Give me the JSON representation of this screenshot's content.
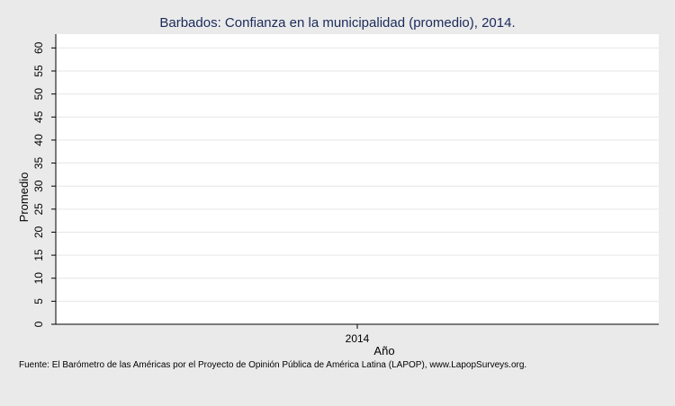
{
  "chart_data": {
    "type": "bar",
    "title": "Barbados: Confianza en la municipalidad (promedio), 2014.",
    "xlabel": "Año",
    "ylabel": "Promedio",
    "categories": [
      "2014"
    ],
    "values": [
      null
    ],
    "ylim": [
      0,
      63
    ],
    "yticks": [
      "0",
      "5",
      "10",
      "15",
      "20",
      "25",
      "30",
      "35",
      "40",
      "45",
      "50",
      "55",
      "60"
    ],
    "grid": true,
    "background": "#eaeaea",
    "plot_background": "#ffffff",
    "grid_color": "#e6e6e6"
  },
  "source_note": "Fuente: El Barómetro de las Américas por el Proyecto de Opinión Pública de América Latina (LAPOP), www.LapopSurveys.org."
}
